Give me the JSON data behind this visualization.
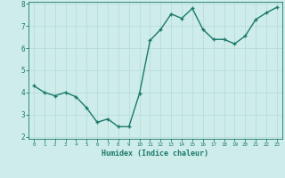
{
  "x": [
    0,
    1,
    2,
    3,
    4,
    5,
    6,
    7,
    8,
    9,
    10,
    11,
    12,
    13,
    14,
    15,
    16,
    17,
    18,
    19,
    20,
    21,
    22,
    23
  ],
  "y": [
    4.3,
    4.0,
    3.85,
    4.0,
    3.8,
    3.3,
    2.65,
    2.8,
    2.45,
    2.45,
    3.95,
    6.35,
    6.85,
    7.55,
    7.35,
    7.8,
    6.85,
    6.4,
    6.4,
    6.2,
    6.55,
    7.3,
    7.6,
    7.85
  ],
  "line_color": "#1a7a6a",
  "bg_color": "#ceecea",
  "grid_color": "#b8dcda",
  "xlabel": "Humidex (Indice chaleur)",
  "xlim": [
    -0.5,
    23.5
  ],
  "ylim": [
    1.9,
    8.1
  ],
  "xticks": [
    0,
    1,
    2,
    3,
    4,
    5,
    6,
    7,
    8,
    9,
    10,
    11,
    12,
    13,
    14,
    15,
    16,
    17,
    18,
    19,
    20,
    21,
    22,
    23
  ],
  "yticks": [
    2,
    3,
    4,
    5,
    6,
    7,
    8
  ],
  "tick_color": "#1a7a6a",
  "label_color": "#1a7a6a",
  "marker": "+",
  "markersize": 3.5,
  "linewidth": 1.0
}
